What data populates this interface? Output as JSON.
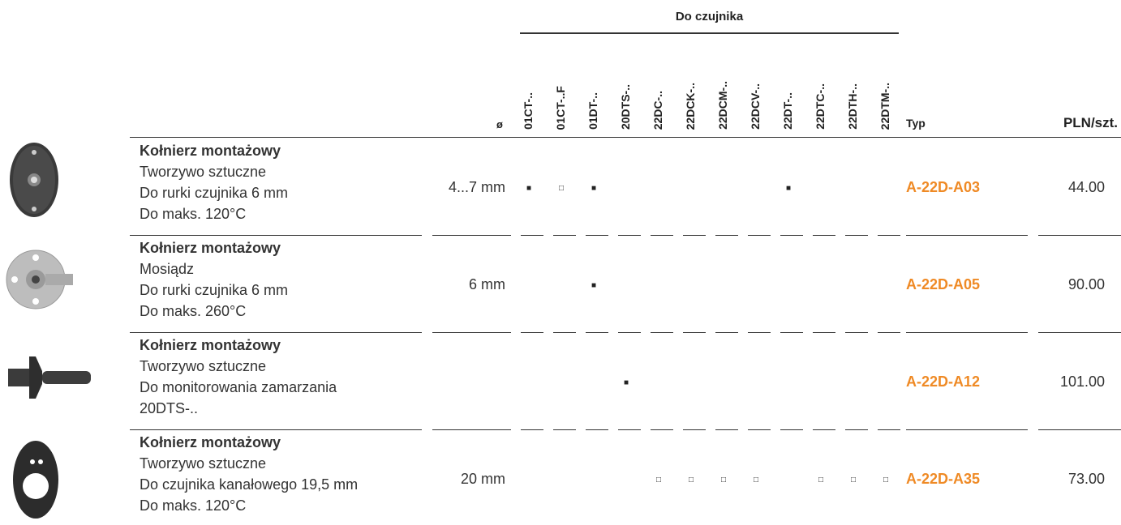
{
  "header": {
    "group_title": "Do czujnika",
    "diameter": "ø",
    "sensors": [
      "01CT-..",
      "01CT-..F",
      "01DT-..",
      "20DTS-..",
      "22DC-..",
      "22DCK-..",
      "22DCM-..",
      "22DCV-..",
      "22DT-..",
      "22DTC-..",
      "22DTH-..",
      "22DTM-.."
    ],
    "type": "Typ",
    "price": "PLN/szt."
  },
  "table": {
    "rows": [
      {
        "title": "Kołnierz montażowy",
        "lines": [
          "Tworzywo sztuczne",
          "Do rurki czujnika 6 mm",
          "Do maks. 120°C"
        ],
        "diameter": "4...7 mm",
        "marks": [
          "■",
          "□",
          "■",
          null,
          null,
          null,
          null,
          null,
          "■",
          null,
          null,
          null
        ],
        "type": "A-22D-A03",
        "price": "44.00"
      },
      {
        "title": "Kołnierz montażowy",
        "lines": [
          "Mosiądz",
          "Do rurki czujnika 6 mm",
          "Do maks. 260°C"
        ],
        "diameter": "6 mm",
        "marks": [
          null,
          null,
          "■",
          null,
          null,
          null,
          null,
          null,
          null,
          null,
          null,
          null
        ],
        "type": "A-22D-A05",
        "price": "90.00"
      },
      {
        "title": "Kołnierz montażowy",
        "lines": [
          "Tworzywo sztuczne",
          "Do monitorowania zamarzania",
          "20DTS-.."
        ],
        "diameter": null,
        "marks": [
          null,
          null,
          null,
          "■",
          null,
          null,
          null,
          null,
          null,
          null,
          null,
          null
        ],
        "type": "A-22D-A12",
        "price": "101.00"
      },
      {
        "title": "Kołnierz montażowy",
        "lines": [
          "Tworzywo sztuczne",
          "Do czujnika kanałowego 19,5 mm",
          "Do maks. 120°C"
        ],
        "diameter": "20 mm",
        "marks": [
          null,
          null,
          null,
          null,
          "□",
          "□",
          "□",
          "□",
          null,
          "□",
          "□",
          "□"
        ],
        "type": "A-22D-A35",
        "price": "73.00"
      }
    ]
  }
}
